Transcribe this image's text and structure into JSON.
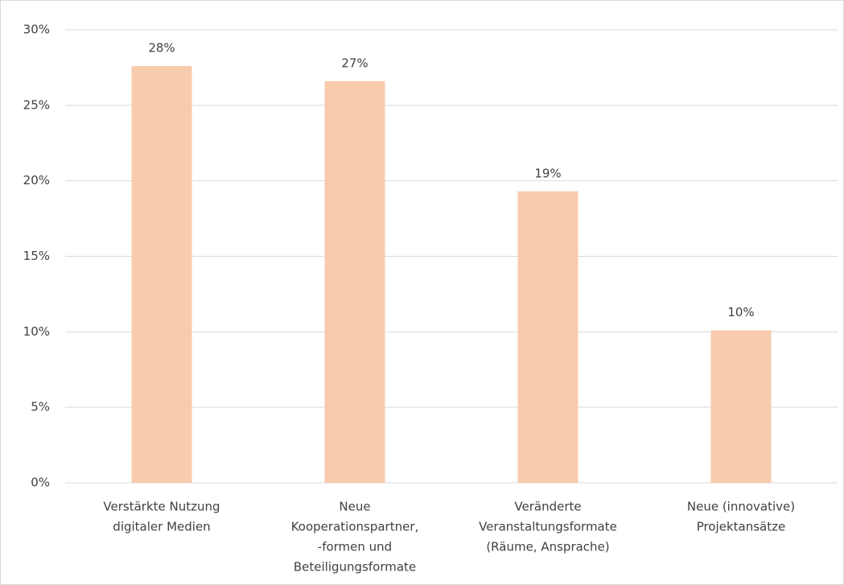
{
  "chart_data": {
    "type": "bar",
    "categories": [
      [
        "Verstärkte Nutzung",
        "digitaler Medien"
      ],
      [
        "Neue",
        "Kooperationspartner,",
        "-formen und",
        "Beteiligungsformate"
      ],
      [
        "Veränderte",
        "Veranstaltungsformate",
        "(Räume, Ansprache)"
      ],
      [
        "Neue (innovative)",
        "Projektansätze"
      ]
    ],
    "values": [
      27.6,
      26.6,
      19.3,
      10.1
    ],
    "value_labels": [
      "28%",
      "27%",
      "19%",
      "10%"
    ],
    "color": "#f8cbad",
    "ylim": [
      0,
      30
    ],
    "yticks": [
      {
        "value": 0,
        "label": "0%"
      },
      {
        "value": 5,
        "label": "5%"
      },
      {
        "value": 10,
        "label": "10%"
      },
      {
        "value": 15,
        "label": "15%"
      },
      {
        "value": 20,
        "label": "20%"
      },
      {
        "value": 25,
        "label": "25%"
      },
      {
        "value": 30,
        "label": "30%"
      }
    ],
    "grid": true
  }
}
